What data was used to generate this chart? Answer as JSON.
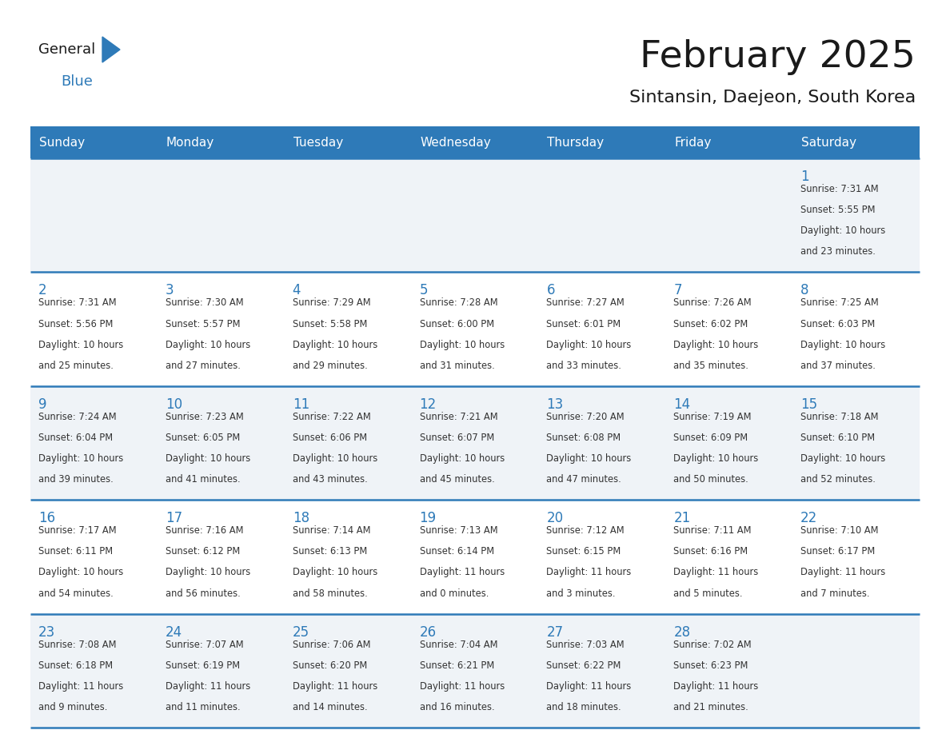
{
  "title": "February 2025",
  "subtitle": "Sintansin, Daejeon, South Korea",
  "days_of_week": [
    "Sunday",
    "Monday",
    "Tuesday",
    "Wednesday",
    "Thursday",
    "Friday",
    "Saturday"
  ],
  "header_bg": "#2e7ab8",
  "header_text_color": "#ffffff",
  "row_bg_A": "#eff3f7",
  "row_bg_B": "#ffffff",
  "border_color": "#2e7ab8",
  "day_num_color": "#2e7ab8",
  "cell_text_color": "#333333",
  "title_color": "#1a1a1a",
  "subtitle_color": "#1a1a1a",
  "logo_general_color": "#1a1a1a",
  "logo_blue_color": "#2e7ab8",
  "logo_triangle_color": "#2e7ab8",
  "weeks": [
    [
      {
        "day": "1",
        "col": 6,
        "lines": [
          "Sunrise: 7:31 AM",
          "Sunset: 5:55 PM",
          "Daylight: 10 hours",
          "and 23 minutes."
        ]
      }
    ],
    [
      {
        "day": "2",
        "col": 0,
        "lines": [
          "Sunrise: 7:31 AM",
          "Sunset: 5:56 PM",
          "Daylight: 10 hours",
          "and 25 minutes."
        ]
      },
      {
        "day": "3",
        "col": 1,
        "lines": [
          "Sunrise: 7:30 AM",
          "Sunset: 5:57 PM",
          "Daylight: 10 hours",
          "and 27 minutes."
        ]
      },
      {
        "day": "4",
        "col": 2,
        "lines": [
          "Sunrise: 7:29 AM",
          "Sunset: 5:58 PM",
          "Daylight: 10 hours",
          "and 29 minutes."
        ]
      },
      {
        "day": "5",
        "col": 3,
        "lines": [
          "Sunrise: 7:28 AM",
          "Sunset: 6:00 PM",
          "Daylight: 10 hours",
          "and 31 minutes."
        ]
      },
      {
        "day": "6",
        "col": 4,
        "lines": [
          "Sunrise: 7:27 AM",
          "Sunset: 6:01 PM",
          "Daylight: 10 hours",
          "and 33 minutes."
        ]
      },
      {
        "day": "7",
        "col": 5,
        "lines": [
          "Sunrise: 7:26 AM",
          "Sunset: 6:02 PM",
          "Daylight: 10 hours",
          "and 35 minutes."
        ]
      },
      {
        "day": "8",
        "col": 6,
        "lines": [
          "Sunrise: 7:25 AM",
          "Sunset: 6:03 PM",
          "Daylight: 10 hours",
          "and 37 minutes."
        ]
      }
    ],
    [
      {
        "day": "9",
        "col": 0,
        "lines": [
          "Sunrise: 7:24 AM",
          "Sunset: 6:04 PM",
          "Daylight: 10 hours",
          "and 39 minutes."
        ]
      },
      {
        "day": "10",
        "col": 1,
        "lines": [
          "Sunrise: 7:23 AM",
          "Sunset: 6:05 PM",
          "Daylight: 10 hours",
          "and 41 minutes."
        ]
      },
      {
        "day": "11",
        "col": 2,
        "lines": [
          "Sunrise: 7:22 AM",
          "Sunset: 6:06 PM",
          "Daylight: 10 hours",
          "and 43 minutes."
        ]
      },
      {
        "day": "12",
        "col": 3,
        "lines": [
          "Sunrise: 7:21 AM",
          "Sunset: 6:07 PM",
          "Daylight: 10 hours",
          "and 45 minutes."
        ]
      },
      {
        "day": "13",
        "col": 4,
        "lines": [
          "Sunrise: 7:20 AM",
          "Sunset: 6:08 PM",
          "Daylight: 10 hours",
          "and 47 minutes."
        ]
      },
      {
        "day": "14",
        "col": 5,
        "lines": [
          "Sunrise: 7:19 AM",
          "Sunset: 6:09 PM",
          "Daylight: 10 hours",
          "and 50 minutes."
        ]
      },
      {
        "day": "15",
        "col": 6,
        "lines": [
          "Sunrise: 7:18 AM",
          "Sunset: 6:10 PM",
          "Daylight: 10 hours",
          "and 52 minutes."
        ]
      }
    ],
    [
      {
        "day": "16",
        "col": 0,
        "lines": [
          "Sunrise: 7:17 AM",
          "Sunset: 6:11 PM",
          "Daylight: 10 hours",
          "and 54 minutes."
        ]
      },
      {
        "day": "17",
        "col": 1,
        "lines": [
          "Sunrise: 7:16 AM",
          "Sunset: 6:12 PM",
          "Daylight: 10 hours",
          "and 56 minutes."
        ]
      },
      {
        "day": "18",
        "col": 2,
        "lines": [
          "Sunrise: 7:14 AM",
          "Sunset: 6:13 PM",
          "Daylight: 10 hours",
          "and 58 minutes."
        ]
      },
      {
        "day": "19",
        "col": 3,
        "lines": [
          "Sunrise: 7:13 AM",
          "Sunset: 6:14 PM",
          "Daylight: 11 hours",
          "and 0 minutes."
        ]
      },
      {
        "day": "20",
        "col": 4,
        "lines": [
          "Sunrise: 7:12 AM",
          "Sunset: 6:15 PM",
          "Daylight: 11 hours",
          "and 3 minutes."
        ]
      },
      {
        "day": "21",
        "col": 5,
        "lines": [
          "Sunrise: 7:11 AM",
          "Sunset: 6:16 PM",
          "Daylight: 11 hours",
          "and 5 minutes."
        ]
      },
      {
        "day": "22",
        "col": 6,
        "lines": [
          "Sunrise: 7:10 AM",
          "Sunset: 6:17 PM",
          "Daylight: 11 hours",
          "and 7 minutes."
        ]
      }
    ],
    [
      {
        "day": "23",
        "col": 0,
        "lines": [
          "Sunrise: 7:08 AM",
          "Sunset: 6:18 PM",
          "Daylight: 11 hours",
          "and 9 minutes."
        ]
      },
      {
        "day": "24",
        "col": 1,
        "lines": [
          "Sunrise: 7:07 AM",
          "Sunset: 6:19 PM",
          "Daylight: 11 hours",
          "and 11 minutes."
        ]
      },
      {
        "day": "25",
        "col": 2,
        "lines": [
          "Sunrise: 7:06 AM",
          "Sunset: 6:20 PM",
          "Daylight: 11 hours",
          "and 14 minutes."
        ]
      },
      {
        "day": "26",
        "col": 3,
        "lines": [
          "Sunrise: 7:04 AM",
          "Sunset: 6:21 PM",
          "Daylight: 11 hours",
          "and 16 minutes."
        ]
      },
      {
        "day": "27",
        "col": 4,
        "lines": [
          "Sunrise: 7:03 AM",
          "Sunset: 6:22 PM",
          "Daylight: 11 hours",
          "and 18 minutes."
        ]
      },
      {
        "day": "28",
        "col": 5,
        "lines": [
          "Sunrise: 7:02 AM",
          "Sunset: 6:23 PM",
          "Daylight: 11 hours",
          "and 21 minutes."
        ]
      }
    ]
  ]
}
